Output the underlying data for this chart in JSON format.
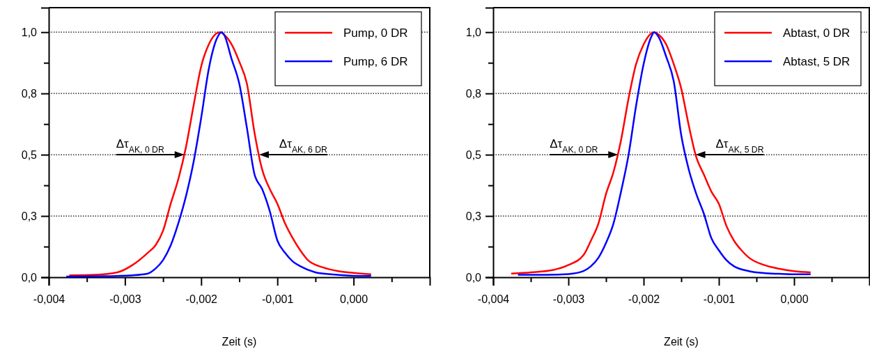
{
  "chart_data": [
    {
      "type": "line",
      "xlabel": "Zeit (s)",
      "xlim": [
        -0.004,
        0.001
      ],
      "ylim": [
        0,
        1.1
      ],
      "xticks": [
        {
          "value": -0.004,
          "label": "-0,004"
        },
        {
          "value": -0.0035,
          "label": null
        },
        {
          "value": -0.003,
          "label": "-0,003"
        },
        {
          "value": -0.0025,
          "label": null
        },
        {
          "value": -0.002,
          "label": "-0,002"
        },
        {
          "value": -0.0015,
          "label": null
        },
        {
          "value": -0.001,
          "label": "-0,001"
        },
        {
          "value": -0.0005,
          "label": null
        },
        {
          "value": 0,
          "label": "0,000"
        },
        {
          "value": 0.0005,
          "label": null
        }
      ],
      "yticks": [
        {
          "value": 0,
          "label": "0,0"
        },
        {
          "value": 0.125,
          "label": null
        },
        {
          "value": 0.25,
          "label": "0,3"
        },
        {
          "value": 0.375,
          "label": null
        },
        {
          "value": 0.5,
          "label": "0,5"
        },
        {
          "value": 0.625,
          "label": null
        },
        {
          "value": 0.75,
          "label": "0,8"
        },
        {
          "value": 0.875,
          "label": null
        },
        {
          "value": 1,
          "label": "1,0"
        }
      ],
      "grid": "y",
      "legend": "top right",
      "series": [
        {
          "name": "Pump, 0 DR",
          "color": "#ff0000",
          "x": [
            -0.00373,
            -0.0034,
            -0.0031,
            -0.0029,
            -0.0027,
            -0.0026,
            -0.0025,
            -0.0024,
            -0.0023,
            -0.0022,
            -0.0021,
            -0.002,
            -0.0019,
            -0.0018,
            -0.00175,
            -0.0017,
            -0.0016,
            -0.0015,
            -0.0014,
            -0.0013,
            -0.0012,
            -0.0011,
            -0.001,
            -0.0009,
            -0.0008,
            -0.0007,
            -0.0006,
            -0.0004,
            -0.0002,
            0,
            0.00023
          ],
          "values": [
            0.008,
            0.01,
            0.02,
            0.05,
            0.1,
            0.13,
            0.19,
            0.3,
            0.4,
            0.53,
            0.7,
            0.86,
            0.95,
            0.995,
            1,
            0.99,
            0.95,
            0.88,
            0.79,
            0.59,
            0.44,
            0.36,
            0.3,
            0.22,
            0.16,
            0.11,
            0.07,
            0.04,
            0.025,
            0.018,
            0.012
          ]
        },
        {
          "name": "Pump, 6 DR",
          "color": "#0000ff",
          "x": [
            -0.00377,
            -0.0033,
            -0.0029,
            -0.0027,
            -0.0026,
            -0.0025,
            -0.0024,
            -0.0023,
            -0.0022,
            -0.0021,
            -0.002,
            -0.0019,
            -0.0018,
            -0.00173,
            -0.0017,
            -0.0016,
            -0.0015,
            -0.0014,
            -0.0013,
            -0.0012,
            -0.0011,
            -0.001,
            -0.0009,
            -0.0008,
            -0.0007,
            -0.0005,
            -0.0003,
            0,
            0.00023
          ],
          "values": [
            0.003,
            0.004,
            0.008,
            0.015,
            0.035,
            0.07,
            0.13,
            0.22,
            0.33,
            0.47,
            0.65,
            0.85,
            0.97,
            1,
            0.99,
            0.89,
            0.79,
            0.61,
            0.42,
            0.36,
            0.27,
            0.15,
            0.1,
            0.065,
            0.045,
            0.02,
            0.012,
            0.006,
            0.005
          ]
        }
      ],
      "annotations": [
        {
          "text": "Δτ$_{AK, 0 DR}$",
          "x": -0.00222,
          "y": 0.5
        },
        {
          "text": "Δτ$_{AK, 6 DR}$",
          "x": -0.00124,
          "y": 0.5
        }
      ]
    },
    {
      "type": "line",
      "xlabel": "Zeit (s)",
      "xlim": [
        -0.004,
        0.001
      ],
      "ylim": [
        0,
        1.1
      ],
      "xticks": [
        {
          "value": -0.004,
          "label": "-0,004"
        },
        {
          "value": -0.0035,
          "label": null
        },
        {
          "value": -0.003,
          "label": "-0,003"
        },
        {
          "value": -0.0025,
          "label": null
        },
        {
          "value": -0.002,
          "label": "-0,002"
        },
        {
          "value": -0.0015,
          "label": null
        },
        {
          "value": -0.001,
          "label": "-0,001"
        },
        {
          "value": -0.0005,
          "label": null
        },
        {
          "value": 0,
          "label": "0,000"
        },
        {
          "value": 0.0005,
          "label": null
        }
      ],
      "yticks": [
        {
          "value": 0,
          "label": "0,0"
        },
        {
          "value": 0.125,
          "label": null
        },
        {
          "value": 0.25,
          "label": "0,3"
        },
        {
          "value": 0.375,
          "label": null
        },
        {
          "value": 0.5,
          "label": "0,5"
        },
        {
          "value": 0.625,
          "label": null
        },
        {
          "value": 0.75,
          "label": "0,8"
        },
        {
          "value": 0.875,
          "label": null
        },
        {
          "value": 1,
          "label": "1,0"
        }
      ],
      "grid": "y",
      "legend": "top right",
      "series": [
        {
          "name": "Abtast, 0 DR",
          "color": "#ff0000",
          "x": [
            -0.00376,
            -0.0035,
            -0.0032,
            -0.003,
            -0.0028,
            -0.0027,
            -0.0026,
            -0.0025,
            -0.0024,
            -0.0023,
            -0.0022,
            -0.0021,
            -0.002,
            -0.0019,
            -0.00186,
            -0.0018,
            -0.0017,
            -0.0016,
            -0.0015,
            -0.0014,
            -0.0013,
            -0.0012,
            -0.0011,
            -0.001,
            -0.0009,
            -0.0008,
            -0.0007,
            -0.0006,
            -0.0004,
            -0.0002,
            0,
            0.00022
          ],
          "values": [
            0.015,
            0.02,
            0.03,
            0.05,
            0.09,
            0.15,
            0.22,
            0.34,
            0.43,
            0.56,
            0.73,
            0.87,
            0.95,
            0.995,
            1,
            0.99,
            0.95,
            0.87,
            0.77,
            0.62,
            0.49,
            0.42,
            0.35,
            0.3,
            0.21,
            0.15,
            0.11,
            0.08,
            0.05,
            0.035,
            0.025,
            0.02
          ]
        },
        {
          "name": "Abtast, 5 DR",
          "color": "#0000ff",
          "x": [
            -0.00367,
            -0.0033,
            -0.003,
            -0.0028,
            -0.0027,
            -0.0026,
            -0.0025,
            -0.0024,
            -0.0023,
            -0.0022,
            -0.0021,
            -0.002,
            -0.0019,
            -0.00186,
            -0.0018,
            -0.0017,
            -0.0016,
            -0.0015,
            -0.0014,
            -0.0013,
            -0.0012,
            -0.0011,
            -0.001,
            -0.0009,
            -0.0008,
            -0.0006,
            -0.0004,
            -0.0002,
            0,
            0.00022
          ],
          "values": [
            0.01,
            0.01,
            0.013,
            0.025,
            0.045,
            0.08,
            0.14,
            0.22,
            0.35,
            0.5,
            0.7,
            0.87,
            0.98,
            1,
            0.98,
            0.9,
            0.8,
            0.58,
            0.44,
            0.34,
            0.26,
            0.16,
            0.11,
            0.07,
            0.045,
            0.025,
            0.017,
            0.014,
            0.012,
            0.012
          ]
        }
      ],
      "annotations": [
        {
          "text": "Δτ$_{AK, 0 DR}$",
          "x": -0.00234,
          "y": 0.5
        },
        {
          "text": "Δτ$_{AK, 5 DR}$",
          "x": -0.00131,
          "y": 0.5
        }
      ]
    }
  ]
}
